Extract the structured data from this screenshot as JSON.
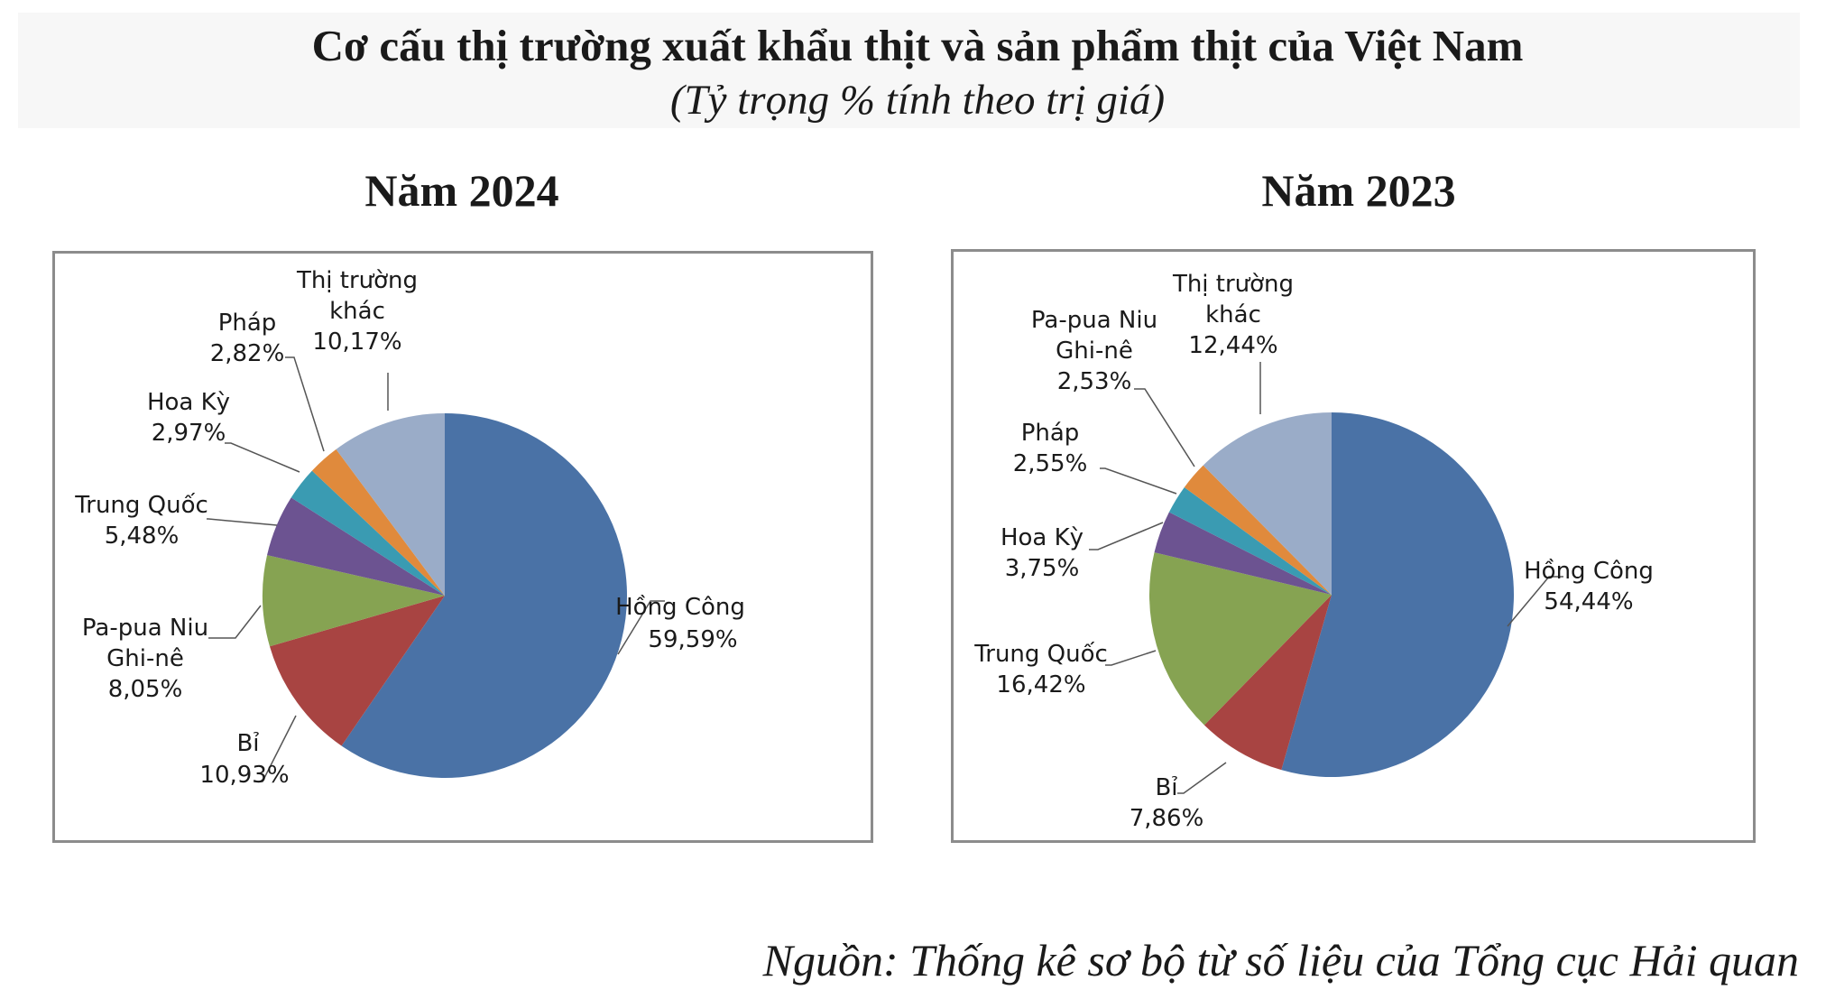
{
  "title": "Cơ cấu thị trường xuất khẩu thịt và sản phẩm thịt của Việt Nam",
  "subtitle": "(Tỷ trọng % tính theo trị giá)",
  "source": "Nguồn: Thống kê sơ bộ từ số liệu của Tổng cục Hải quan",
  "chart_data": [
    {
      "type": "pie",
      "title": "Năm 2024",
      "unit": "%",
      "slices": [
        {
          "label": "Hồng Công",
          "value": 59.59,
          "display": "59,59%",
          "color": "#4a72a6"
        },
        {
          "label": "Bỉ",
          "value": 10.93,
          "display": "10,93%",
          "color": "#a84442"
        },
        {
          "label": "Pa-pua Niu Ghi-nê",
          "value": 8.05,
          "display": "8,05%",
          "color": "#86a352"
        },
        {
          "label": "Trung Quốc",
          "value": 5.48,
          "display": "5,48%",
          "color": "#6c5391"
        },
        {
          "label": "Hoa Kỳ",
          "value": 2.97,
          "display": "2,97%",
          "color": "#3a9bb2"
        },
        {
          "label": "Pháp",
          "value": 2.82,
          "display": "2,82%",
          "color": "#e08a3c"
        },
        {
          "label": "Thị trường khác",
          "value": 10.17,
          "display": "10,17%",
          "color": "#9aacc8"
        }
      ]
    },
    {
      "type": "pie",
      "title": "Năm 2023",
      "unit": "%",
      "slices": [
        {
          "label": "Hồng Công",
          "value": 54.44,
          "display": "54,44%",
          "color": "#4a72a6"
        },
        {
          "label": "Bỉ",
          "value": 7.86,
          "display": "7,86%",
          "color": "#a84442"
        },
        {
          "label": "Trung Quốc",
          "value": 16.42,
          "display": "16,42%",
          "color": "#86a352"
        },
        {
          "label": "Hoa Kỳ",
          "value": 3.75,
          "display": "3,75%",
          "color": "#6c5391"
        },
        {
          "label": "Pháp",
          "value": 2.55,
          "display": "2,55%",
          "color": "#3a9bb2"
        },
        {
          "label": "Pa-pua Niu Ghi-nê",
          "value": 2.53,
          "display": "2,53%",
          "color": "#e08a3c"
        },
        {
          "label": "Thị trường khác",
          "value": 12.44,
          "display": "12,44%",
          "color": "#9aacc8"
        }
      ]
    }
  ]
}
